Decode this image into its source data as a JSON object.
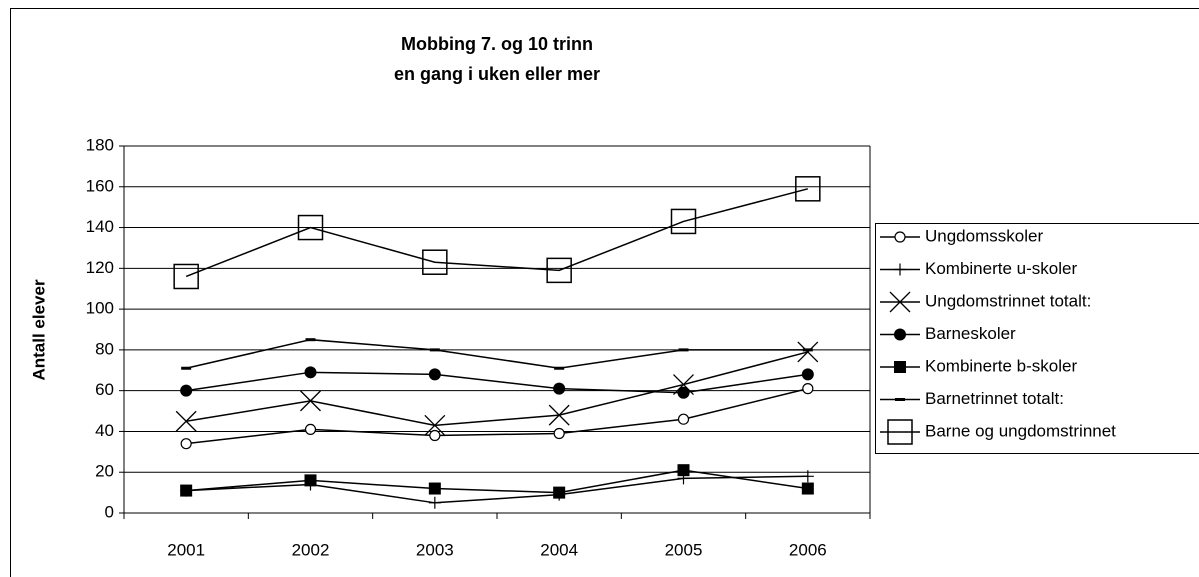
{
  "chart_data": {
    "type": "line",
    "title": "Mobbing 7. og 10 trinn",
    "subtitle": "en gang i uken eller mer",
    "y_label": "Antall elever",
    "categories": [
      "2001",
      "2002",
      "2003",
      "2004",
      "2005",
      "2006"
    ],
    "series": [
      {
        "name": "Ungdomsskoler",
        "color": "#000000",
        "marker": "circle-open",
        "values": [
          34,
          41,
          38,
          39,
          46,
          61
        ]
      },
      {
        "name": "Kombinerte u-skoler",
        "color": "#000000",
        "marker": "plus",
        "values": [
          11,
          14,
          5,
          9,
          17,
          18
        ]
      },
      {
        "name": "Ungdomstrinnet totalt:",
        "color": "#000000",
        "marker": "cross",
        "values": [
          45,
          55,
          43,
          48,
          63,
          79
        ]
      },
      {
        "name": "Barneskoler",
        "color": "#000000",
        "marker": "circle-filled",
        "values": [
          60,
          69,
          68,
          61,
          59,
          68
        ]
      },
      {
        "name": "Kombinerte b-skoler",
        "color": "#000000",
        "marker": "square-filled",
        "values": [
          11,
          16,
          12,
          10,
          21,
          12
        ]
      },
      {
        "name": "Barnetrinnet totalt:",
        "color": "#000000",
        "marker": "dash",
        "values": [
          71,
          85,
          80,
          71,
          80,
          80
        ]
      },
      {
        "name": "Barne og ungdomstrinnet",
        "color": "#000000",
        "marker": "square-open",
        "values": [
          116,
          140,
          123,
          119,
          143,
          159
        ]
      }
    ],
    "ylim": [
      0,
      180
    ],
    "yticks": [
      0,
      20,
      40,
      60,
      80,
      100,
      120,
      140,
      160,
      180
    ],
    "grid": true,
    "legend": "right"
  }
}
